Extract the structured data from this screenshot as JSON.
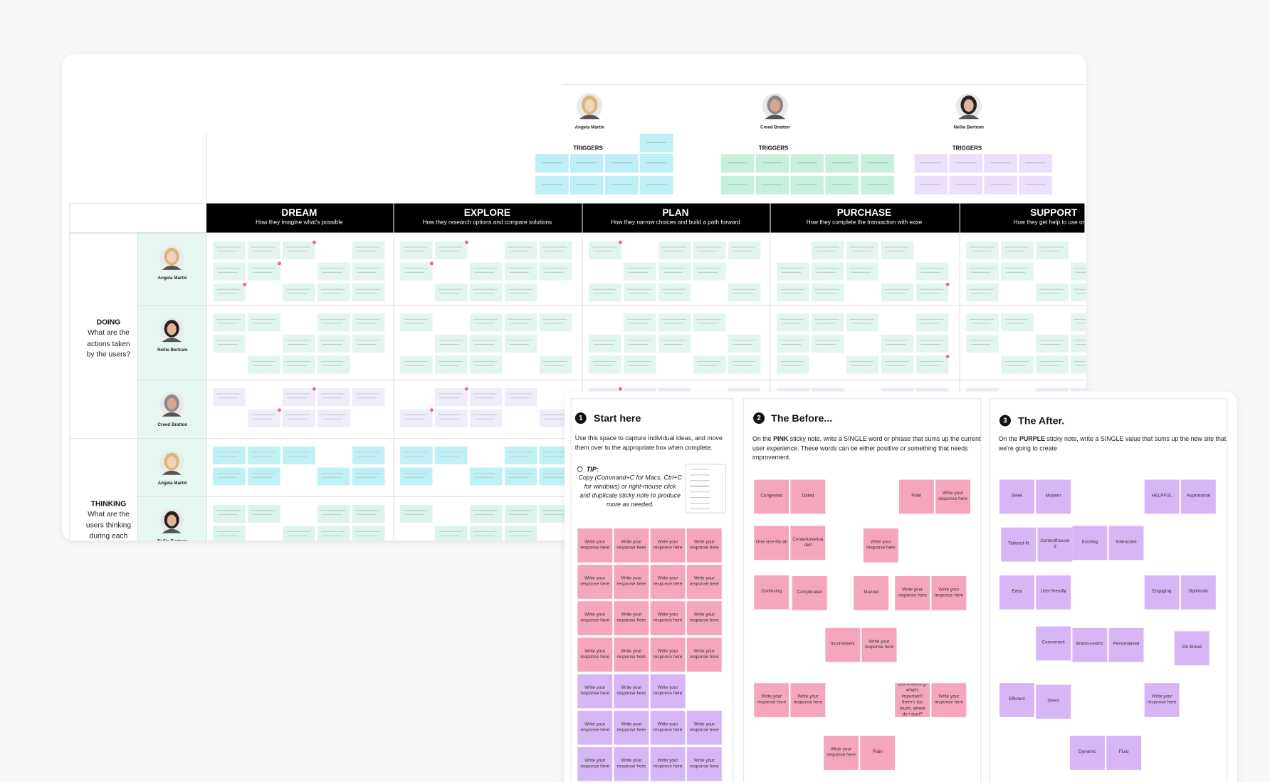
{
  "board": {
    "personas": [
      {
        "name": "Angela Martin",
        "triggers_label": "TRIGGERS",
        "color": "#bdeff4"
      },
      {
        "name": "Creed Bratton",
        "triggers_label": "TRIGGERS",
        "color": "#c6f0db"
      },
      {
        "name": "Nellie Bertram",
        "triggers_label": "TRIGGERS",
        "color": "#ecdffb"
      }
    ],
    "stages": [
      {
        "title": "DREAM",
        "subtitle": "How they imagine what's possible"
      },
      {
        "title": "EXPLORE",
        "subtitle": "How they research options and compare solutions"
      },
      {
        "title": "PLAN",
        "subtitle": "How they narrow choices and build a path forward"
      },
      {
        "title": "PURCHASE",
        "subtitle": "How they complete the transaction with ease"
      },
      {
        "title": "SUPPORT",
        "subtitle": "How they get help to use or res"
      }
    ],
    "rows": [
      {
        "title": "DOING",
        "question": "What are the actions taken by the users?",
        "personas": [
          "Angela Martin",
          "Nellie Bertram",
          "Creed Bratton"
        ]
      },
      {
        "title": "THINKING",
        "question": "What are the users thinking during each",
        "personas": [
          "Angela Martin",
          "Nellie Bertram"
        ]
      }
    ]
  },
  "panels": [
    {
      "number": "1",
      "title": "Start here",
      "body": [
        "Use this space to capture individual ideas, and move them over to the appropriate box when complete."
      ],
      "tip_label": "TIP:",
      "tip": "Copy (Command+C for Macs, Ctrl+C for windows) or right-mouse click and duplicate sticky note to produce more as needed.",
      "notes": [
        {
          "text": "Write your response here",
          "color": "#f5a6bd"
        },
        {
          "text": "Write your response here",
          "color": "#f5a6bd"
        },
        {
          "text": "Write your response here",
          "color": "#f5a6bd"
        },
        {
          "text": "Write your response here",
          "color": "#f5a6bd"
        },
        {
          "text": "Write your response here",
          "color": "#f5a6bd"
        },
        {
          "text": "Write your response here",
          "color": "#f5a6bd"
        },
        {
          "text": "Write your response here",
          "color": "#f5a6bd"
        },
        {
          "text": "Write your response here",
          "color": "#f5a6bd"
        },
        {
          "text": "Write your response here",
          "color": "#f5a6bd"
        },
        {
          "text": "Write your response here",
          "color": "#f5a6bd"
        },
        {
          "text": "Write your response here",
          "color": "#f5a6bd"
        },
        {
          "text": "Write your response here",
          "color": "#f5a6bd"
        },
        {
          "text": "Write your response here",
          "color": "#f5a6bd"
        },
        {
          "text": "Write your response here",
          "color": "#f5a6bd"
        },
        {
          "text": "Write your response here",
          "color": "#f5a6bd"
        },
        {
          "text": "Write your response here",
          "color": "#f5a6bd"
        },
        {
          "text": "Write your response here",
          "color": "#d6b6f4"
        },
        {
          "text": "Write your response here",
          "color": "#d6b6f4"
        },
        {
          "text": "Write your response here",
          "color": "#d6b6f4"
        },
        {
          "text": "Write your response here",
          "color": "#d6b6f4"
        },
        {
          "text": "Write your response here",
          "color": "#d6b6f4"
        },
        {
          "text": "Write your response here",
          "color": "#d6b6f4"
        },
        {
          "text": "Write your response here",
          "color": "#d6b6f4"
        },
        {
          "text": "Write your response here",
          "color": "#d6b6f4"
        },
        {
          "text": "Write your response here",
          "color": "#d6b6f4"
        },
        {
          "text": "Write your response here",
          "color": "#d6b6f4"
        },
        {
          "text": "Write your response here",
          "color": "#d6b6f4"
        }
      ]
    },
    {
      "number": "2",
      "title": "The Before...",
      "body": [
        "On the ",
        "PINK",
        " sticky note, write a SINGLE word or phrase that sums up the current user experience. These words can be either positive or something that needs improvement."
      ],
      "notes": [
        {
          "text": "Congested",
          "color": "#f5a6bd"
        },
        {
          "text": "Dated",
          "color": "#f5a6bd"
        },
        {
          "text": "Plain",
          "color": "#f5a6bd"
        },
        {
          "text": "Write your response here",
          "color": "#f5a6bd"
        },
        {
          "text": "One-size-fits-all",
          "color": "#f5a6bd"
        },
        {
          "text": "Contentoverloaded",
          "color": "#f5a6bd"
        },
        {
          "text": "Write your response here",
          "color": "#f5a6bd"
        },
        {
          "text": "Confusing",
          "color": "#f5a6bd"
        },
        {
          "text": "Complicated",
          "color": "#f5a6bd"
        },
        {
          "text": "Manual",
          "color": "#f5a6bd"
        },
        {
          "text": "Write your response here",
          "color": "#f5a6bd"
        },
        {
          "text": "Write your response here",
          "color": "#f5a6bd"
        },
        {
          "text": "Inconsistent",
          "color": "#f5a6bd"
        },
        {
          "text": "Write your response here",
          "color": "#f5a6bd"
        },
        {
          "text": "Write your response here",
          "color": "#f5a6bd"
        },
        {
          "text": "Write your response here",
          "color": "#f5a6bd"
        },
        {
          "text": "overwhelming- what's important? there's too much, where do i start?",
          "color": "#f5a6bd"
        },
        {
          "text": "Write your response here",
          "color": "#f5a6bd"
        },
        {
          "text": "Write your response here",
          "color": "#f5a6bd"
        },
        {
          "text": "Plain",
          "color": "#f5a6bd"
        }
      ]
    },
    {
      "number": "3",
      "title": "The After.",
      "body": [
        "On the ",
        "PURPLE",
        " sticky note, write a SINGLE value that sums up the new site that we're going to create"
      ],
      "notes": [
        {
          "text": "Sleek",
          "color": "#d6b6f4"
        },
        {
          "text": "Modern",
          "color": "#d6b6f4"
        },
        {
          "text": "HELPFUL",
          "color": "#d6b6f4"
        },
        {
          "text": "Aspirational",
          "color": "#d6b6f4"
        },
        {
          "text": "Tailored-fit",
          "color": "#d6b6f4"
        },
        {
          "text": "Contentfocused",
          "color": "#d6b6f4"
        },
        {
          "text": "Exciting",
          "color": "#d6b6f4"
        },
        {
          "text": "Interactive",
          "color": "#d6b6f4"
        },
        {
          "text": "Easy",
          "color": "#d6b6f4"
        },
        {
          "text": "User-friendly",
          "color": "#d6b6f4"
        },
        {
          "text": "Engaging",
          "color": "#d6b6f4"
        },
        {
          "text": "Optimistic",
          "color": "#d6b6f4"
        },
        {
          "text": "Convenient",
          "color": "#d6b6f4"
        },
        {
          "text": "Brand-centric",
          "color": "#d6b6f4"
        },
        {
          "text": "Personalized",
          "color": "#d6b6f4"
        },
        {
          "text": "On Brand",
          "color": "#d6b6f4"
        },
        {
          "text": "Efficient",
          "color": "#d6b6f4"
        },
        {
          "text": "Direct",
          "color": "#d6b6f4"
        },
        {
          "text": "Write your response here",
          "color": "#d6b6f4"
        },
        {
          "text": "Dynamic",
          "color": "#d6b6f4"
        },
        {
          "text": "Fluid",
          "color": "#d6b6f4"
        }
      ]
    }
  ]
}
